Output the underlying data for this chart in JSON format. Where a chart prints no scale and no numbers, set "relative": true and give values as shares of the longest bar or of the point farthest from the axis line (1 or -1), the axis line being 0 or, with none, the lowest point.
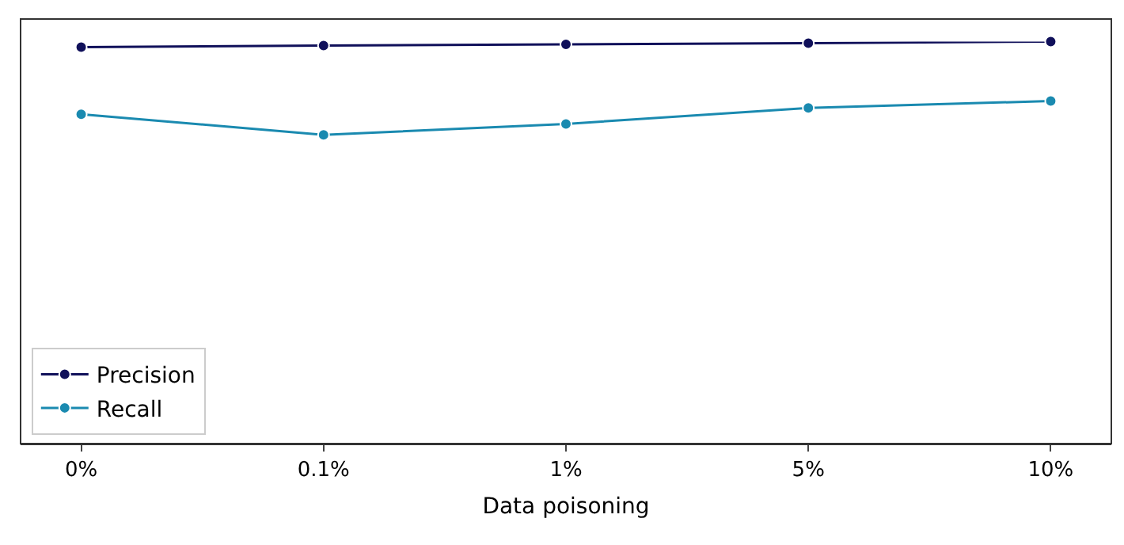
{
  "chart_data": {
    "type": "line",
    "xlabel": "Data poisoning",
    "relative": true,
    "tick_labels": "x",
    "categories": [
      "0%",
      "0.1%",
      "1%",
      "5%",
      "10%"
    ],
    "series": [
      {
        "name": "Precision",
        "color": "#10105a",
        "values": [
          0.986,
          0.99,
          0.993,
          0.996,
          1
        ]
      },
      {
        "name": "Recall",
        "color": "#1a8ab0",
        "values": [
          0.819,
          0.768,
          0.795,
          0.835,
          0.852
        ]
      }
    ],
    "marker": "circle",
    "line_style": "solid",
    "grid": false,
    "legend": "bottom left"
  }
}
